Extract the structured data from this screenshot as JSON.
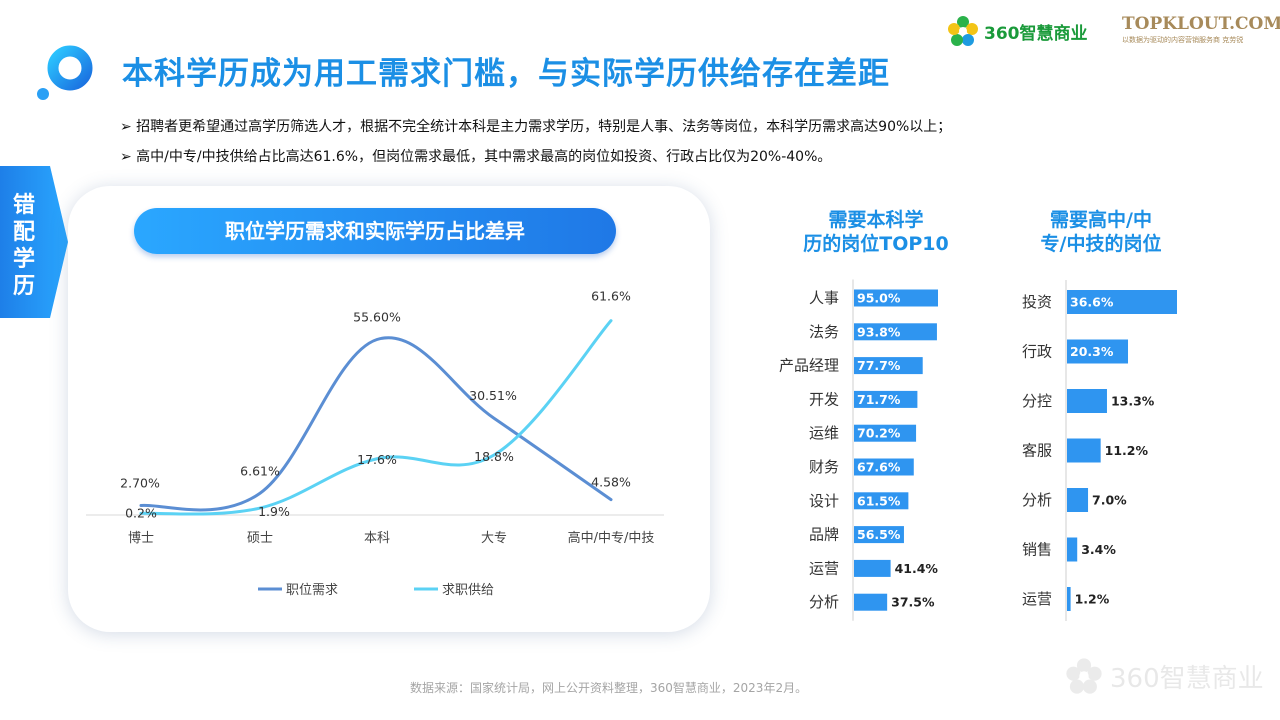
{
  "header": {
    "title": "本科学历成为用工需求门槛，与实际学历供给存在差距",
    "brand_360": "360智慧商业",
    "brand_topklout": "TOPKLOUT.COM",
    "brand_topklout_sub": "克劳锐",
    "brand_topklout_tagline": "以数据为驱动的内容营销服务商"
  },
  "bullets": [
    "➢ 招聘者更希望通过高学历筛选人才，根据不完全统计本科是主力需求学历，特别是人事、法务等岗位，本科学历需求高达90%以上；",
    "➢ 高中/中专/中技供给占比高达61.6%，但岗位需求最低，其中需求最高的岗位如投资、行政占比仅为20%-40%。"
  ],
  "side_tab": {
    "label": "错配学历"
  },
  "colors": {
    "primary": "#1b8fe5",
    "bar": "#2f95f0",
    "demand_line": "#5b8ed3",
    "supply_line": "#5bd2f4"
  },
  "chart_data": [
    {
      "type": "line",
      "title": "职位学历需求和实际学历占比差异",
      "categories": [
        "博士",
        "硕士",
        "本科",
        "大专",
        "高中/中专/中技"
      ],
      "series": [
        {
          "name": "职位需求",
          "values": [
            2.7,
            6.61,
            55.6,
            30.51,
            4.58
          ],
          "labels": [
            "2.70%",
            "6.61%",
            "55.60%",
            "30.51%",
            "4.58%"
          ],
          "color": "#5b8ed3"
        },
        {
          "name": "求职供给",
          "values": [
            0.2,
            1.9,
            17.6,
            18.8,
            61.6
          ],
          "labels": [
            "0.2%",
            "1.9%",
            "17.6%",
            "18.8%",
            "61.6%"
          ],
          "color": "#5bd2f4"
        }
      ],
      "ylim": [
        0,
        65
      ],
      "legend": "bottom"
    },
    {
      "type": "bar",
      "orientation": "horizontal",
      "title": "需要本科学历的岗位TOP10",
      "categories": [
        "人事",
        "法务",
        "产品经理",
        "开发",
        "运维",
        "财务",
        "设计",
        "品牌",
        "运营",
        "分析"
      ],
      "values": [
        95.0,
        93.8,
        77.7,
        71.7,
        70.2,
        67.6,
        61.5,
        56.5,
        41.4,
        37.5
      ],
      "labels": [
        "95.0%",
        "93.8%",
        "77.7%",
        "71.7%",
        "70.2%",
        "67.6%",
        "61.5%",
        "56.5%",
        "41.4%",
        "37.5%"
      ]
    },
    {
      "type": "bar",
      "orientation": "horizontal",
      "title": "需要高中/中专/中技的岗位",
      "categories": [
        "投资",
        "行政",
        "分控",
        "客服",
        "分析",
        "销售",
        "运营"
      ],
      "values": [
        36.6,
        20.3,
        13.3,
        11.2,
        7.0,
        3.4,
        1.2
      ],
      "labels": [
        "36.6%",
        "20.3%",
        "13.3%",
        "11.2%",
        "7.0%",
        "3.4%",
        "1.2%"
      ]
    }
  ],
  "footer": {
    "source": "数据来源：国家统计局，网上公开资料整理，360智慧商业，2023年2月。",
    "watermark": "360智慧商业"
  }
}
